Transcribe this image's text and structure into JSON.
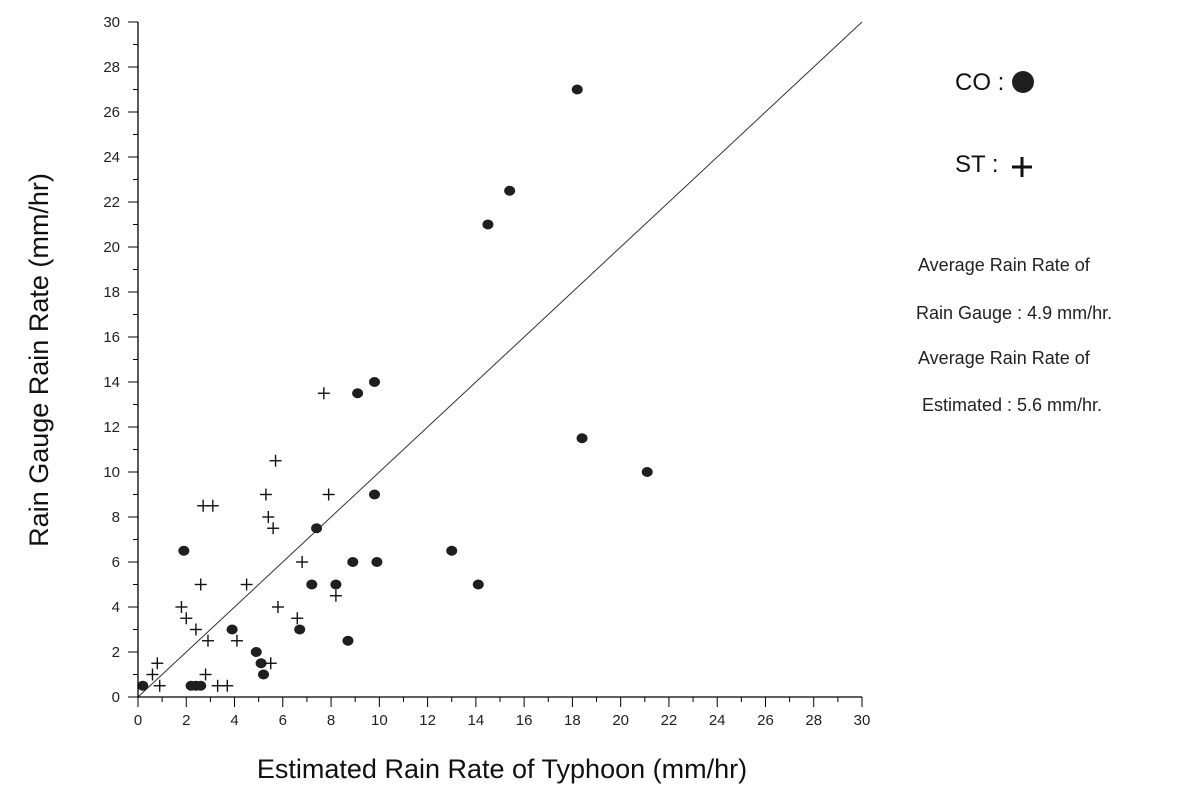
{
  "chart_data": {
    "type": "scatter",
    "xlabel": "Estimated Rain Rate of Typhoon (mm/hr)",
    "ylabel": "Rain Gauge Rain Rate (mm/hr)",
    "xlim": [
      0,
      30
    ],
    "ylim": [
      0,
      30
    ],
    "x_ticks": [
      0,
      2,
      4,
      6,
      8,
      10,
      12,
      14,
      16,
      18,
      20,
      22,
      24,
      26,
      28,
      30
    ],
    "y_ticks": [
      0,
      2,
      4,
      6,
      8,
      10,
      12,
      14,
      16,
      18,
      20,
      22,
      24,
      26,
      28,
      30
    ],
    "minor_tick_step": 1,
    "grid": false,
    "reference_line": {
      "type": "y=x",
      "from": [
        0,
        0
      ],
      "to": [
        30,
        30
      ]
    },
    "legend": {
      "placement": "right",
      "entries": [
        {
          "label": "CO :",
          "marker": "filled-circle-icon"
        },
        {
          "label": "ST :",
          "marker": "plus-icon"
        }
      ]
    },
    "annotations": [
      "Average Rain Rate of",
      "Rain Gauge : 4.9 mm/hr.",
      "Average Rain Rate of",
      "Estimated : 5.6 mm/hr."
    ],
    "series": [
      {
        "name": "CO",
        "marker": "circle",
        "color": "#1f1f1f",
        "x": [
          0.2,
          1.9,
          2.2,
          2.4,
          2.6,
          3.9,
          4.9,
          5.1,
          5.2,
          6.7,
          7.2,
          7.4,
          8.2,
          8.7,
          8.9,
          9.1,
          9.8,
          9.8,
          9.9,
          13.0,
          14.1,
          14.5,
          15.4,
          18.2,
          18.4,
          21.1
        ],
        "y": [
          0.5,
          6.5,
          0.5,
          0.5,
          0.5,
          3.0,
          2.0,
          1.5,
          1.0,
          3.0,
          5.0,
          7.5,
          5.0,
          2.5,
          6.0,
          13.5,
          9.0,
          14.0,
          6.0,
          6.5,
          5.0,
          21.0,
          22.5,
          27.0,
          11.5,
          10.0
        ]
      },
      {
        "name": "ST",
        "marker": "plus",
        "color": "#111111",
        "x": [
          0.6,
          0.8,
          0.9,
          1.8,
          2.0,
          2.4,
          2.6,
          2.7,
          2.8,
          2.9,
          3.1,
          3.3,
          3.7,
          4.1,
          4.5,
          5.3,
          5.4,
          5.5,
          5.6,
          5.7,
          5.8,
          6.6,
          6.8,
          7.7,
          7.9,
          8.2
        ],
        "y": [
          1.0,
          1.5,
          0.5,
          4.0,
          3.5,
          3.0,
          5.0,
          8.5,
          1.0,
          2.5,
          8.5,
          0.5,
          0.5,
          2.5,
          5.0,
          9.0,
          8.0,
          1.5,
          7.5,
          10.5,
          4.0,
          3.5,
          6.0,
          13.5,
          9.0,
          4.5
        ]
      }
    ]
  }
}
